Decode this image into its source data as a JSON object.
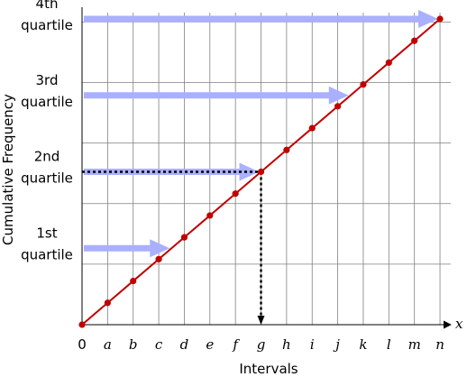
{
  "chart_data": {
    "type": "line",
    "title": "",
    "xlabel": "Intervals",
    "ylabel": "Cumulative Frequency",
    "x_axis_symbol": "x",
    "categories": [
      "0",
      "a",
      "b",
      "c",
      "d",
      "e",
      "f",
      "g",
      "h",
      "i",
      "j",
      "k",
      "l",
      "m",
      "n"
    ],
    "series": [
      {
        "color": "#c00000",
        "values": [
          0,
          1,
          2,
          3,
          4,
          5,
          6,
          7,
          8,
          9,
          10,
          11,
          12,
          13,
          14
        ]
      }
    ],
    "ylim": [
      0,
      14
    ],
    "grid": true,
    "quartiles": [
      {
        "line1": "1st",
        "line2": "quartile",
        "level": 3.5,
        "arrow_end_index": 3.5
      },
      {
        "line1": "2nd",
        "line2": "quartile",
        "level": 7,
        "arrow_end_index": 7
      },
      {
        "line1": "3rd",
        "line2": "quartile",
        "level": 10.5,
        "arrow_end_index": 10.5
      },
      {
        "line1": "4th",
        "line2": "quartile",
        "level": 14,
        "arrow_end_index": 14
      }
    ],
    "median_projection_index": 7,
    "arrow_color": "#aab0ff",
    "dotted_color": "#000000"
  }
}
